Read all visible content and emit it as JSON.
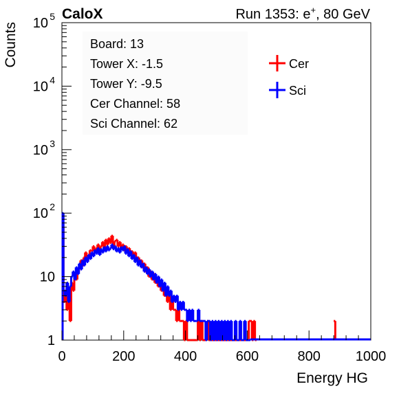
{
  "header": {
    "left_label": "CaloX",
    "run_label": "Run 1353: e",
    "run_sup": "+",
    "run_suffix": ", 80 GeV"
  },
  "info_box": {
    "lines": [
      "Board: 13",
      "Tower X: -1.5",
      "Tower Y: -9.5",
      "Cer Channel: 58",
      "Sci Channel: 62"
    ]
  },
  "colors": {
    "cer": "#ff0000",
    "sci": "#0000ff",
    "frame": "#000000"
  },
  "chart_data": {
    "type": "line",
    "title": "",
    "xlabel": "Energy HG",
    "ylabel": "Counts",
    "xlim": [
      0,
      1000
    ],
    "ylim": [
      1,
      100000
    ],
    "yscale": "log",
    "x_ticks": [
      "0",
      "200",
      "400",
      "600",
      "800",
      "1000"
    ],
    "y_ticks": [
      {
        "base": "1",
        "exp": ""
      },
      {
        "base": "10",
        "exp": ""
      },
      {
        "base": "10",
        "exp": "2"
      },
      {
        "base": "10",
        "exp": "3"
      },
      {
        "base": "10",
        "exp": "4"
      },
      {
        "base": "10",
        "exp": "5"
      }
    ],
    "legend_position": "top-right",
    "series": [
      {
        "name": "Cer",
        "color": "#ff0000",
        "x": [
          0,
          5,
          10,
          15,
          20,
          25,
          30,
          35,
          40,
          45,
          50,
          55,
          60,
          65,
          70,
          75,
          80,
          85,
          90,
          95,
          100,
          105,
          110,
          115,
          120,
          125,
          130,
          135,
          140,
          145,
          150,
          155,
          160,
          165,
          170,
          175,
          180,
          185,
          190,
          195,
          200,
          205,
          210,
          215,
          220,
          225,
          230,
          235,
          240,
          245,
          250,
          255,
          260,
          265,
          270,
          275,
          280,
          285,
          290,
          295,
          300,
          305,
          310,
          315,
          320,
          325,
          330,
          335,
          340,
          345,
          350,
          355,
          360,
          365,
          370,
          375,
          380,
          385,
          390,
          395,
          400,
          405,
          410,
          415,
          420,
          425,
          430,
          435,
          440,
          445,
          450,
          455,
          460,
          465,
          470,
          475,
          480,
          485,
          490,
          495,
          500,
          505,
          510,
          515,
          520,
          525,
          530,
          535,
          540,
          545,
          550,
          555,
          560,
          565,
          570,
          575,
          580,
          585,
          590,
          595,
          600,
          605,
          610,
          615,
          620,
          625,
          880
        ],
        "y": [
          60,
          4,
          6,
          3,
          5,
          2,
          8,
          6,
          10,
          9,
          12,
          14,
          18,
          15,
          20,
          24,
          18,
          22,
          26,
          25,
          30,
          24,
          28,
          32,
          27,
          30,
          35,
          28,
          38,
          32,
          40,
          34,
          44,
          30,
          36,
          38,
          30,
          35,
          28,
          32,
          26,
          30,
          24,
          28,
          22,
          25,
          20,
          24,
          18,
          20,
          16,
          18,
          14,
          16,
          12,
          14,
          10,
          12,
          9,
          11,
          8,
          9,
          7,
          8,
          6,
          7,
          5,
          6,
          4,
          5,
          3,
          4,
          3,
          3,
          2,
          3,
          2,
          2,
          2,
          1,
          2,
          1,
          1,
          1,
          1,
          1,
          1,
          1,
          2,
          1,
          2,
          1,
          1,
          1,
          2,
          1,
          1,
          1,
          1,
          1,
          1,
          1,
          1,
          1,
          1,
          1,
          1,
          1,
          1,
          1,
          1,
          1,
          1,
          1,
          1,
          1,
          1,
          1,
          1,
          1,
          1,
          2,
          2,
          1,
          2,
          1,
          2
        ]
      },
      {
        "name": "Sci",
        "color": "#0000ff",
        "x": [
          0,
          5,
          10,
          15,
          20,
          25,
          30,
          35,
          40,
          45,
          50,
          55,
          60,
          65,
          70,
          75,
          80,
          85,
          90,
          95,
          100,
          105,
          110,
          115,
          120,
          125,
          130,
          135,
          140,
          145,
          150,
          155,
          160,
          165,
          170,
          175,
          180,
          185,
          190,
          195,
          200,
          205,
          210,
          215,
          220,
          225,
          230,
          235,
          240,
          245,
          250,
          255,
          260,
          265,
          270,
          275,
          280,
          285,
          290,
          295,
          300,
          305,
          310,
          315,
          320,
          325,
          330,
          335,
          340,
          345,
          350,
          355,
          360,
          365,
          370,
          375,
          380,
          385,
          390,
          395,
          400,
          405,
          410,
          415,
          420,
          425,
          430,
          435,
          440,
          445,
          450,
          455,
          460,
          465,
          470,
          475,
          480,
          485,
          490,
          495,
          500,
          505,
          510,
          515,
          520,
          525,
          530,
          535,
          540,
          545,
          550,
          555,
          560,
          565,
          570,
          575,
          580,
          585,
          590,
          595,
          600,
          605
        ],
        "y": [
          100,
          6,
          5,
          8,
          4,
          7,
          10,
          12,
          9,
          14,
          11,
          16,
          13,
          18,
          15,
          20,
          17,
          22,
          19,
          24,
          21,
          26,
          23,
          28,
          22,
          27,
          24,
          29,
          25,
          30,
          26,
          28,
          32,
          27,
          30,
          25,
          28,
          24,
          29,
          26,
          30,
          23,
          27,
          21,
          25,
          19,
          22,
          17,
          20,
          15,
          18,
          14,
          16,
          12,
          14,
          11,
          13,
          10,
          12,
          9,
          11,
          8,
          10,
          7,
          9,
          6,
          8,
          5,
          7,
          5,
          6,
          4,
          5,
          4,
          5,
          3,
          4,
          3,
          4,
          3,
          3,
          2,
          3,
          2,
          3,
          2,
          2,
          2,
          3,
          2,
          2,
          2,
          2,
          1,
          2,
          2,
          1,
          2,
          1,
          2,
          1,
          2,
          1,
          2,
          1,
          2,
          1,
          2,
          1,
          2,
          1,
          1,
          2,
          1,
          1,
          2,
          1,
          1,
          2,
          1,
          1,
          1
        ]
      }
    ]
  }
}
